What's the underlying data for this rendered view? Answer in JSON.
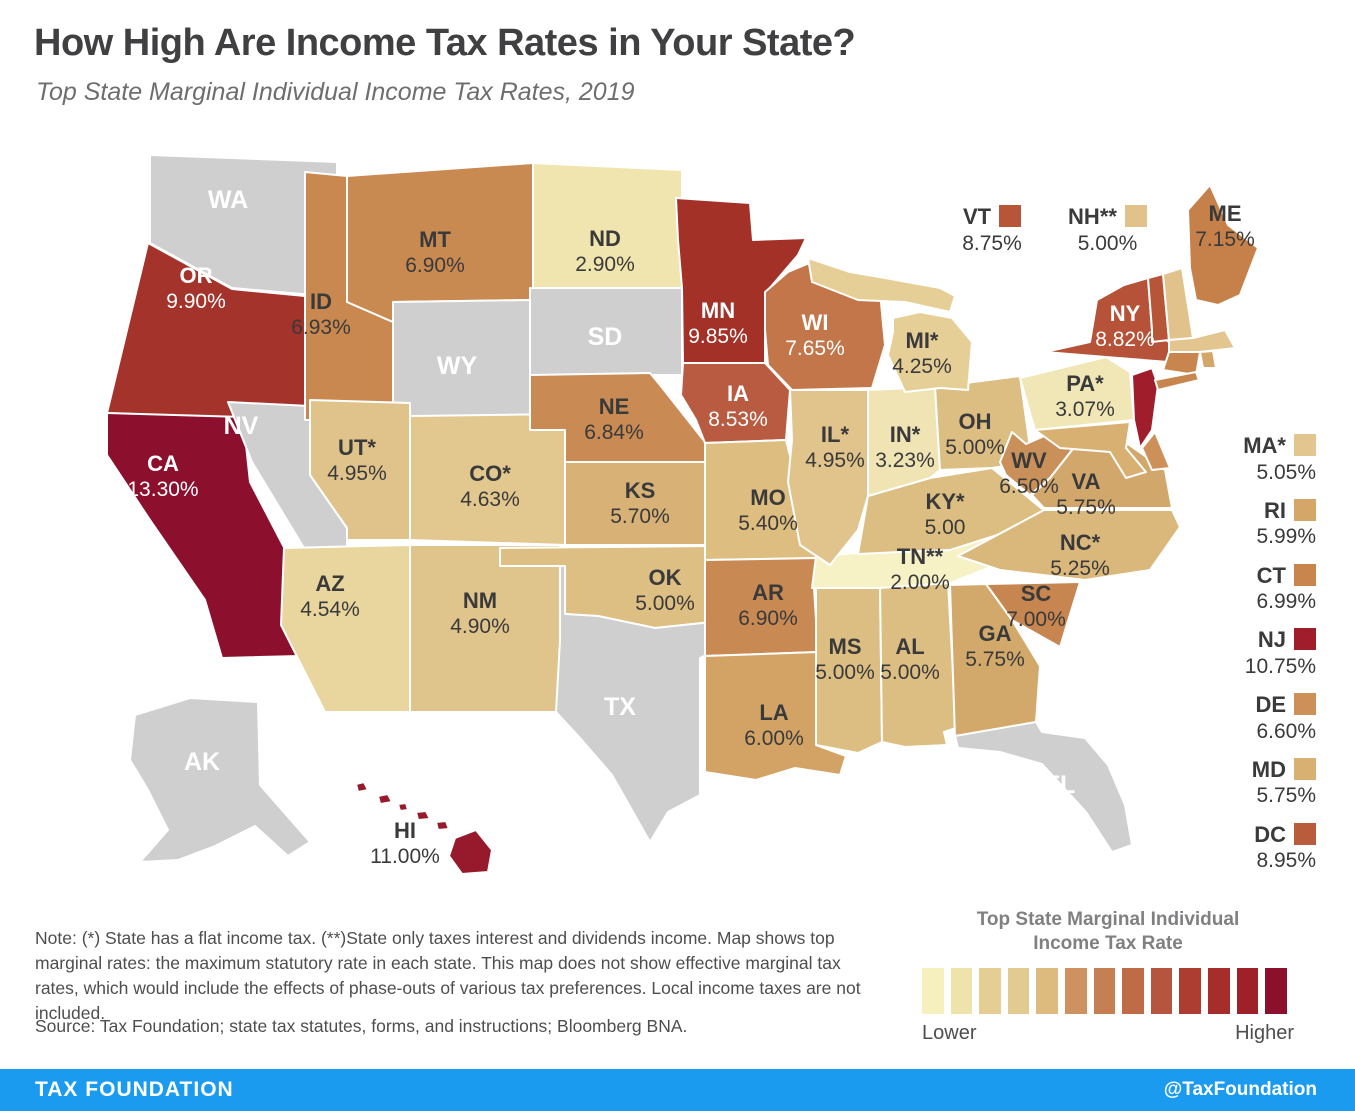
{
  "title": "How High Are Income Tax Rates in Your State?",
  "subtitle": "Top State Marginal Individual Income Tax Rates, 2019",
  "note": "Note: (*) State has a flat income tax. (**)State only taxes interest and dividends income. Map shows top marginal rates: the maximum statutory rate in each state. This map does not show effective marginal tax rates, which would include the effects of phase-outs of various tax preferences. Local income taxes are not included.",
  "source": "Source: Tax Foundation; state tax statutes, forms, and instructions; Bloomberg BNA.",
  "footer": {
    "left": "TAX FOUNDATION",
    "right": "@TaxFoundation",
    "bg": "#1a9bf0"
  },
  "legend": {
    "title_line1": "Top State Marginal Individual",
    "title_line2": "Income Tax Rate",
    "lower": "Lower",
    "higher": "Higher",
    "palette": [
      "#F6F0BE",
      "#EFE3AC",
      "#E5CE94",
      "#E2CA90",
      "#DDBA7E",
      "#CD9260",
      "#C67F52",
      "#C06B48",
      "#B55540",
      "#AC3D30",
      "#A52E2B",
      "#9E2029",
      "#8C0F2C"
    ]
  },
  "map": {
    "no_tax_color": "#CFCFCF",
    "border_color": "#FFFFFF",
    "long_island_color": "#C8854E"
  },
  "states": [
    {
      "code": "WA",
      "abbr": "WA",
      "rate": null,
      "value": null,
      "color": "#CFCFCF",
      "label_color": "#FFFFFF"
    },
    {
      "code": "OR",
      "abbr": "OR",
      "rate": "9.90%",
      "value": 9.9,
      "color": "#A4332B",
      "label_color": "#FFFFFF"
    },
    {
      "code": "CA",
      "abbr": "CA",
      "rate": "13.30%",
      "value": 13.3,
      "color": "#8C102D",
      "label_color": "#FFFFFF"
    },
    {
      "code": "NV",
      "abbr": "NV",
      "rate": null,
      "value": null,
      "color": "#CFCFCF",
      "label_color": "#FFFFFF"
    },
    {
      "code": "ID",
      "abbr": "ID",
      "rate": "6.93%",
      "value": 6.93,
      "color": "#C88850",
      "label_color": "#3A3A3A"
    },
    {
      "code": "MT",
      "abbr": "MT",
      "rate": "6.90%",
      "value": 6.9,
      "color": "#C98A52",
      "label_color": "#3A3A3A"
    },
    {
      "code": "WY",
      "abbr": "WY",
      "rate": null,
      "value": null,
      "color": "#CFCFCF",
      "label_color": "#FFFFFF"
    },
    {
      "code": "UT",
      "abbr": "UT*",
      "rate": "4.95%",
      "value": 4.95,
      "color": "#DFC38B",
      "label_color": "#3A3A3A"
    },
    {
      "code": "AZ",
      "abbr": "AZ",
      "rate": "4.54%",
      "value": 4.54,
      "color": "#E8D69E",
      "label_color": "#3A3A3A"
    },
    {
      "code": "NM",
      "abbr": "NM",
      "rate": "4.90%",
      "value": 4.9,
      "color": "#DFC48B",
      "label_color": "#3A3A3A"
    },
    {
      "code": "CO",
      "abbr": "CO*",
      "rate": "4.63%",
      "value": 4.63,
      "color": "#E2C88F",
      "label_color": "#3A3A3A"
    },
    {
      "code": "ND",
      "abbr": "ND",
      "rate": "2.90%",
      "value": 2.9,
      "color": "#F0E5AE",
      "label_color": "#3A3A3A"
    },
    {
      "code": "SD",
      "abbr": "SD",
      "rate": null,
      "value": null,
      "color": "#CFCFCF",
      "label_color": "#FFFFFF"
    },
    {
      "code": "NE",
      "abbr": "NE",
      "rate": "6.84%",
      "value": 6.84,
      "color": "#C98A54",
      "label_color": "#3A3A3A"
    },
    {
      "code": "KS",
      "abbr": "KS",
      "rate": "5.70%",
      "value": 5.7,
      "color": "#D7B175",
      "label_color": "#3A3A3A"
    },
    {
      "code": "OK",
      "abbr": "OK",
      "rate": "5.00%",
      "value": 5.0,
      "color": "#DDBE83",
      "label_color": "#3A3A3A"
    },
    {
      "code": "TX",
      "abbr": "TX",
      "rate": null,
      "value": null,
      "color": "#CFCFCF",
      "label_color": "#FFFFFF"
    },
    {
      "code": "MN",
      "abbr": "MN",
      "rate": "9.85%",
      "value": 9.85,
      "color": "#A33128",
      "label_color": "#FFFFFF"
    },
    {
      "code": "IA",
      "abbr": "IA",
      "rate": "8.53%",
      "value": 8.53,
      "color": "#B85B41",
      "label_color": "#FFFFFF"
    },
    {
      "code": "MO",
      "abbr": "MO",
      "rate": "5.40%",
      "value": 5.4,
      "color": "#DDBD80",
      "label_color": "#3A3A3A"
    },
    {
      "code": "AR",
      "abbr": "AR",
      "rate": "6.90%",
      "value": 6.9,
      "color": "#C98952",
      "label_color": "#3A3A3A"
    },
    {
      "code": "LA",
      "abbr": "LA",
      "rate": "6.00%",
      "value": 6.0,
      "color": "#D2A365",
      "label_color": "#3A3A3A"
    },
    {
      "code": "WI",
      "abbr": "WI",
      "rate": "7.65%",
      "value": 7.65,
      "color": "#C27649",
      "label_color": "#FFFFFF"
    },
    {
      "code": "IL",
      "abbr": "IL*",
      "rate": "4.95%",
      "value": 4.95,
      "color": "#E0C48C",
      "label_color": "#3A3A3A"
    },
    {
      "code": "MS",
      "abbr": "MS",
      "rate": "5.00%",
      "value": 5.0,
      "color": "#DCBE82",
      "label_color": "#3A3A3A"
    },
    {
      "code": "AL",
      "abbr": "AL",
      "rate": "5.00%",
      "value": 5.0,
      "color": "#DCBE82",
      "label_color": "#3A3A3A"
    },
    {
      "code": "MI",
      "abbr": "MI*",
      "rate": "4.25%",
      "value": 4.25,
      "color": "#E6CF96",
      "label_color": "#3A3A3A"
    },
    {
      "code": "IN",
      "abbr": "IN*",
      "rate": "3.23%",
      "value": 3.23,
      "color": "#F0E4B4",
      "label_color": "#3A3A3A"
    },
    {
      "code": "OH",
      "abbr": "OH",
      "rate": "5.00%",
      "value": 5.0,
      "color": "#DCBE82",
      "label_color": "#3A3A3A"
    },
    {
      "code": "KY",
      "abbr": "KY*",
      "rate": "5.00",
      "value": 5.0,
      "color": "#DCBE82",
      "label_color": "#3A3A3A"
    },
    {
      "code": "TN",
      "abbr": "TN**",
      "rate": "2.00%",
      "value": 2.0,
      "color": "#F7F1C6",
      "label_color": "#3A3A3A"
    },
    {
      "code": "GA",
      "abbr": "GA",
      "rate": "5.75%",
      "value": 5.75,
      "color": "#D3A96B",
      "label_color": "#3A3A3A"
    },
    {
      "code": "SC",
      "abbr": "SC",
      "rate": "7.00%",
      "value": 7.0,
      "color": "#C7854F",
      "label_color": "#3A3A3A"
    },
    {
      "code": "NC",
      "abbr": "NC*",
      "rate": "5.25%",
      "value": 5.25,
      "color": "#DAB87B",
      "label_color": "#3A3A3A"
    },
    {
      "code": "VA",
      "abbr": "VA",
      "rate": "5.75%",
      "value": 5.75,
      "color": "#D2A76C",
      "label_color": "#3A3A3A"
    },
    {
      "code": "WV",
      "abbr": "WV",
      "rate": "6.50%",
      "value": 6.5,
      "color": "#C9905A",
      "label_color": "#3A3A3A"
    },
    {
      "code": "PA",
      "abbr": "PA*",
      "rate": "3.07%",
      "value": 3.07,
      "color": "#F1E6B5",
      "label_color": "#3A3A3A"
    },
    {
      "code": "NY",
      "abbr": "NY",
      "rate": "8.82%",
      "value": 8.82,
      "color": "#B55238",
      "label_color": "#FFFFFF"
    },
    {
      "code": "ME",
      "abbr": "ME",
      "rate": "7.15%",
      "value": 7.15,
      "color": "#C6814B",
      "label_color": "#3A3A3A"
    },
    {
      "code": "FL",
      "abbr": "FL",
      "rate": null,
      "value": null,
      "color": "#CFCFCF",
      "label_color": "#FFFFFF"
    },
    {
      "code": "AK",
      "abbr": "AK",
      "rate": null,
      "value": null,
      "color": "#CFCFCF",
      "label_color": "#FFFFFF"
    },
    {
      "code": "HI",
      "abbr": "HI",
      "rate": "11.00%",
      "value": 11.0,
      "color": "#971A2C",
      "label_color": "#3A3A3A"
    },
    {
      "code": "VT",
      "abbr": "VT",
      "rate": "8.75%",
      "value": 8.75,
      "color": "#B75538",
      "label_color": "#3A3A3A"
    },
    {
      "code": "NH",
      "abbr": "NH**",
      "rate": "5.00%",
      "value": 5.0,
      "color": "#E0C28A",
      "label_color": "#3A3A3A"
    },
    {
      "code": "MA",
      "abbr": "MA*",
      "rate": "5.05%",
      "value": 5.05,
      "color": "#E2C58F",
      "label_color": "#3A3A3A"
    },
    {
      "code": "RI",
      "abbr": "RI",
      "rate": "5.99%",
      "value": 5.99,
      "color": "#D4A768",
      "label_color": "#3A3A3A"
    },
    {
      "code": "CT",
      "abbr": "CT",
      "rate": "6.99%",
      "value": 6.99,
      "color": "#C8854E",
      "label_color": "#3A3A3A"
    },
    {
      "code": "NJ",
      "abbr": "NJ",
      "rate": "10.75%",
      "value": 10.75,
      "color": "#A01D2B",
      "label_color": "#FFFFFF"
    },
    {
      "code": "DE",
      "abbr": "DE",
      "rate": "6.60%",
      "value": 6.6,
      "color": "#CD9059",
      "label_color": "#3A3A3A"
    },
    {
      "code": "MD",
      "abbr": "MD",
      "rate": "5.75%",
      "value": 5.75,
      "color": "#D8B072",
      "label_color": "#3A3A3A"
    }
  ],
  "callouts": [
    {
      "code": "VT",
      "label": "VT",
      "rate": "8.75%",
      "color": "#B75538"
    },
    {
      "code": "NH",
      "label": "NH**",
      "rate": "5.00%",
      "color": "#E0C28A"
    }
  ],
  "side_list": [
    {
      "code": "MA",
      "label": "MA*",
      "rate": "5.05%",
      "color": "#E2C58F"
    },
    {
      "code": "RI",
      "label": "RI",
      "rate": "5.99%",
      "color": "#D4A768"
    },
    {
      "code": "CT",
      "label": "CT",
      "rate": "6.99%",
      "color": "#C8854E"
    },
    {
      "code": "NJ",
      "label": "NJ",
      "rate": "10.75%",
      "color": "#A01D2B"
    },
    {
      "code": "DE",
      "label": "DE",
      "rate": "6.60%",
      "color": "#CD9059"
    },
    {
      "code": "MD",
      "label": "MD",
      "rate": "5.75%",
      "color": "#D8B072"
    },
    {
      "code": "DC",
      "label": "DC",
      "rate": "8.95%",
      "color": "#B95C3C"
    }
  ]
}
